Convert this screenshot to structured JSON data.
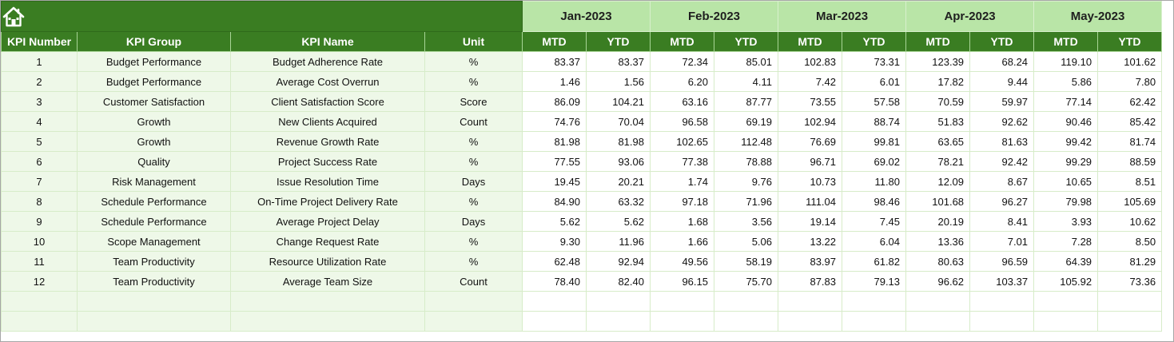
{
  "home": {
    "icon": "home-icon"
  },
  "months": [
    {
      "label": "Jan-2023"
    },
    {
      "label": "Feb-2023"
    },
    {
      "label": "Mar-2023"
    },
    {
      "label": "Apr-2023"
    },
    {
      "label": "May-2023"
    }
  ],
  "columns": {
    "kpi_number": "KPI Number",
    "kpi_group": "KPI Group",
    "kpi_name": "KPI Name",
    "unit": "Unit",
    "mtd": "MTD",
    "ytd": "YTD"
  },
  "rows": [
    {
      "num": "1",
      "group": "Budget Performance",
      "name": "Budget Adherence Rate",
      "unit": "%",
      "values": [
        "83.37",
        "83.37",
        "72.34",
        "85.01",
        "102.83",
        "73.31",
        "123.39",
        "68.24",
        "119.10",
        "101.62"
      ]
    },
    {
      "num": "2",
      "group": "Budget Performance",
      "name": "Average Cost Overrun",
      "unit": "%",
      "values": [
        "1.46",
        "1.56",
        "6.20",
        "4.11",
        "7.42",
        "6.01",
        "17.82",
        "9.44",
        "5.86",
        "7.80"
      ]
    },
    {
      "num": "3",
      "group": "Customer Satisfaction",
      "name": "Client Satisfaction Score",
      "unit": "Score",
      "values": [
        "86.09",
        "104.21",
        "63.16",
        "87.77",
        "73.55",
        "57.58",
        "70.59",
        "59.97",
        "77.14",
        "62.42"
      ]
    },
    {
      "num": "4",
      "group": "Growth",
      "name": "New Clients Acquired",
      "unit": "Count",
      "values": [
        "74.76",
        "70.04",
        "96.58",
        "69.19",
        "102.94",
        "88.74",
        "51.83",
        "92.62",
        "90.46",
        "85.42"
      ]
    },
    {
      "num": "5",
      "group": "Growth",
      "name": "Revenue Growth Rate",
      "unit": "%",
      "values": [
        "81.98",
        "81.98",
        "102.65",
        "112.48",
        "76.69",
        "99.81",
        "63.65",
        "81.63",
        "99.42",
        "81.74"
      ]
    },
    {
      "num": "6",
      "group": "Quality",
      "name": "Project Success Rate",
      "unit": "%",
      "values": [
        "77.55",
        "93.06",
        "77.38",
        "78.88",
        "96.71",
        "69.02",
        "78.21",
        "92.42",
        "99.29",
        "88.59"
      ]
    },
    {
      "num": "7",
      "group": "Risk Management",
      "name": "Issue Resolution Time",
      "unit": "Days",
      "values": [
        "19.45",
        "20.21",
        "1.74",
        "9.76",
        "10.73",
        "11.80",
        "12.09",
        "8.67",
        "10.65",
        "8.51"
      ]
    },
    {
      "num": "8",
      "group": "Schedule Performance",
      "name": "On-Time Project Delivery Rate",
      "unit": "%",
      "values": [
        "84.90",
        "63.32",
        "97.18",
        "71.96",
        "111.04",
        "98.46",
        "101.68",
        "96.27",
        "79.98",
        "105.69"
      ]
    },
    {
      "num": "9",
      "group": "Schedule Performance",
      "name": "Average Project Delay",
      "unit": "Days",
      "values": [
        "5.62",
        "5.62",
        "1.68",
        "3.56",
        "19.14",
        "7.45",
        "20.19",
        "8.41",
        "3.93",
        "10.62"
      ]
    },
    {
      "num": "10",
      "group": "Scope Management",
      "name": "Change Request Rate",
      "unit": "%",
      "values": [
        "9.30",
        "11.96",
        "1.66",
        "5.06",
        "13.22",
        "6.04",
        "13.36",
        "7.01",
        "7.28",
        "8.50"
      ]
    },
    {
      "num": "11",
      "group": "Team Productivity",
      "name": "Resource Utilization Rate",
      "unit": "%",
      "values": [
        "62.48",
        "92.94",
        "49.56",
        "58.19",
        "83.97",
        "61.82",
        "80.63",
        "96.59",
        "64.39",
        "81.29"
      ]
    },
    {
      "num": "12",
      "group": "Team Productivity",
      "name": "Average Team Size",
      "unit": "Count",
      "values": [
        "78.40",
        "82.40",
        "96.15",
        "75.70",
        "87.83",
        "79.13",
        "96.62",
        "103.37",
        "105.92",
        "73.36"
      ]
    }
  ],
  "empty_rows": 2,
  "colors": {
    "header_green": "#3a7d22",
    "month_band": "#b9e5a7",
    "info_fill": "#eef8e8",
    "grid_line": "#d7ecc9"
  }
}
